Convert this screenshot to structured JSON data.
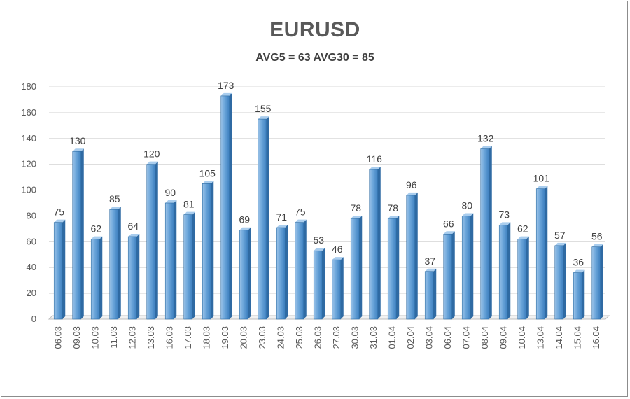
{
  "chart_data": {
    "type": "bar",
    "title": "EURUSD",
    "subtitle": "AVG5 = 63 AVG30 = 85",
    "xlabel": "",
    "ylabel": "",
    "ylim": [
      0,
      180
    ],
    "yticks": [
      0,
      20,
      40,
      60,
      80,
      100,
      120,
      140,
      160,
      180
    ],
    "grid": true,
    "legend": "none",
    "categories": [
      "06.03",
      "09.03",
      "10.03",
      "11.03",
      "12.03",
      "13.03",
      "16.03",
      "17.03",
      "18.03",
      "19.03",
      "20.03",
      "23.03",
      "24.03",
      "25.03",
      "26.03",
      "27.03",
      "30.03",
      "31.03",
      "01.04",
      "02.04",
      "03.04",
      "06.04",
      "07.04",
      "08.04",
      "09.04",
      "10.04",
      "13.04",
      "14.04",
      "15.04",
      "16.04"
    ],
    "values": [
      75,
      130,
      62,
      85,
      64,
      120,
      90,
      81,
      105,
      173,
      69,
      155,
      71,
      75,
      53,
      46,
      78,
      116,
      78,
      96,
      37,
      66,
      80,
      132,
      73,
      62,
      101,
      57,
      36,
      56
    ],
    "bar_color": "#5b9bd5",
    "bar_edge_color": "#2e6da4"
  }
}
